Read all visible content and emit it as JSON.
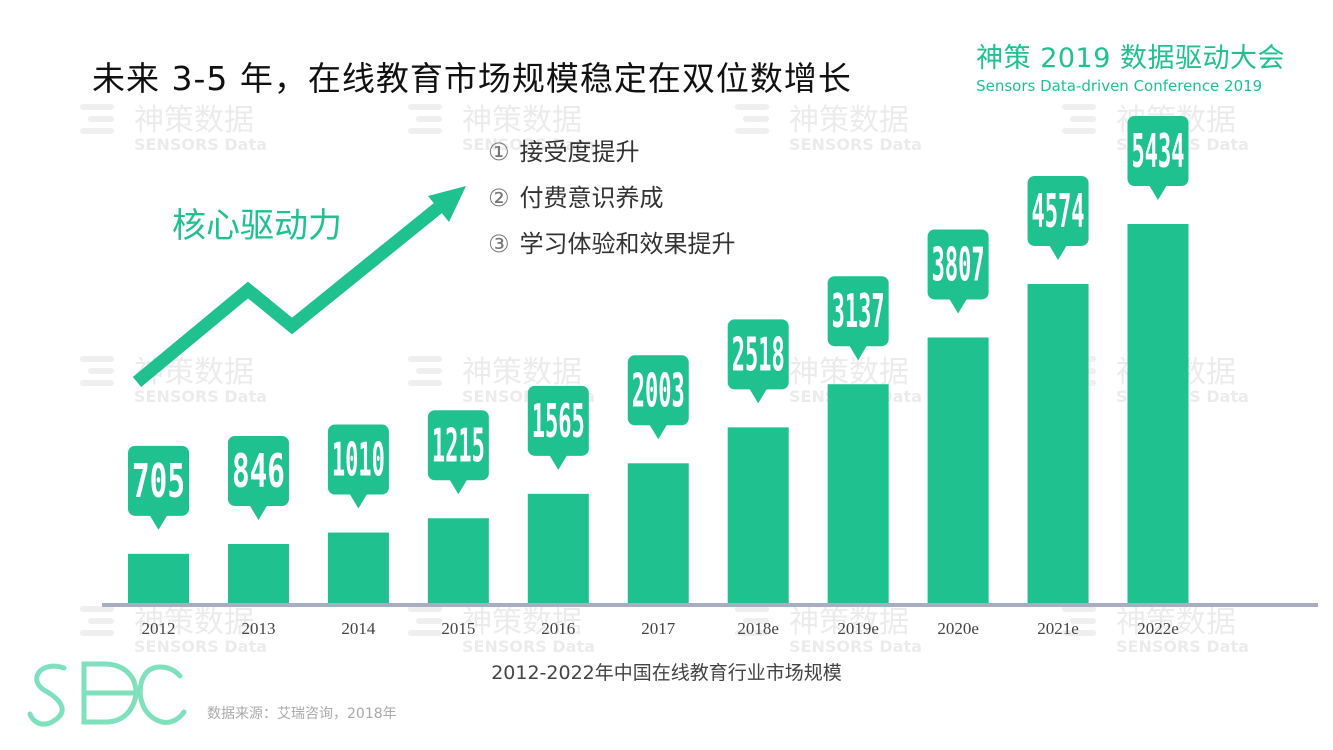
{
  "title": "未来 3-5 年，在线教育市场规模稳定在双位数增长",
  "conference": {
    "name_cn": "神策 2019 数据驱动大会",
    "name_en": "Sensors Data-driven Conference 2019"
  },
  "drive_label": "核心驱动力",
  "drivers": [
    {
      "num": "①",
      "text": "接受度提升"
    },
    {
      "num": "②",
      "text": "付费意识养成"
    },
    {
      "num": "③",
      "text": "学习体验和效果提升"
    }
  ],
  "watermark": {
    "cn": "神策数据",
    "en": "SENSORS Data"
  },
  "logo_text": "SDC",
  "caption": "2012-2022年中国在线教育行业市场规模",
  "source": "数据来源：艾瑞咨询，2018年",
  "colors": {
    "accent": "#1fc28e",
    "axis": "#a8aec2"
  },
  "chart_data": {
    "type": "bar",
    "title": "2012-2022年中国在线教育行业市场规模",
    "categories": [
      "2012",
      "2013",
      "2014",
      "2015",
      "2016",
      "2017",
      "2018e",
      "2019e",
      "2020e",
      "2021e",
      "2022e"
    ],
    "values": [
      705,
      846,
      1010,
      1215,
      1565,
      2003,
      2518,
      3137,
      3807,
      4574,
      5434
    ],
    "labels": [
      "705",
      "846",
      "1010",
      "1215",
      "1565",
      "2003",
      "2518",
      "3137",
      "3807",
      "4574",
      "5434"
    ],
    "xlabel": "",
    "ylabel": "",
    "ylim": [
      0,
      5434
    ],
    "grid": false,
    "legend": "none"
  }
}
